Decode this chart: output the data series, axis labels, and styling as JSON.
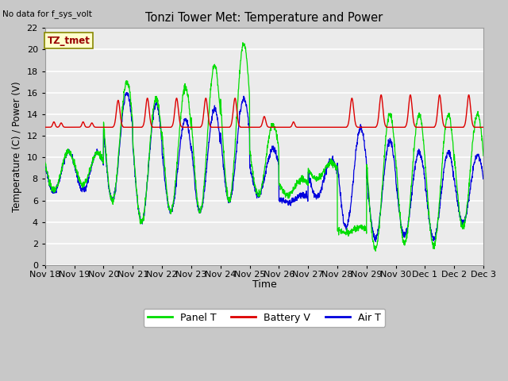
{
  "title": "Tonzi Tower Met: Temperature and Power",
  "ylabel": "Temperature (C) / Power (V)",
  "xlabel": "Time",
  "top_left_text": "No data for f_sys_volt",
  "annotation_box": "TZ_tmet",
  "ylim": [
    0,
    22
  ],
  "yticks": [
    0,
    2,
    4,
    6,
    8,
    10,
    12,
    14,
    16,
    18,
    20,
    22
  ],
  "xtick_labels": [
    "Nov 18",
    "Nov 19",
    "Nov 20",
    "Nov 21",
    "Nov 22",
    "Nov 23",
    "Nov 24",
    "Nov 25",
    "Nov 26",
    "Nov 27",
    "Nov 28",
    "Nov 29",
    "Nov 30",
    "Dec 1",
    "Dec 2",
    "Dec 3"
  ],
  "legend_entries": [
    "Panel T",
    "Battery V",
    "Air T"
  ],
  "legend_colors": [
    "#00dd00",
    "#dd0000",
    "#0000dd"
  ],
  "plot_bg_color": "#ebebeb",
  "grid_color": "#ffffff",
  "panel_t_color": "#00dd00",
  "battery_v_color": "#dd0000",
  "air_t_color": "#0000dd",
  "fig_bg_color": "#c8c8c8"
}
